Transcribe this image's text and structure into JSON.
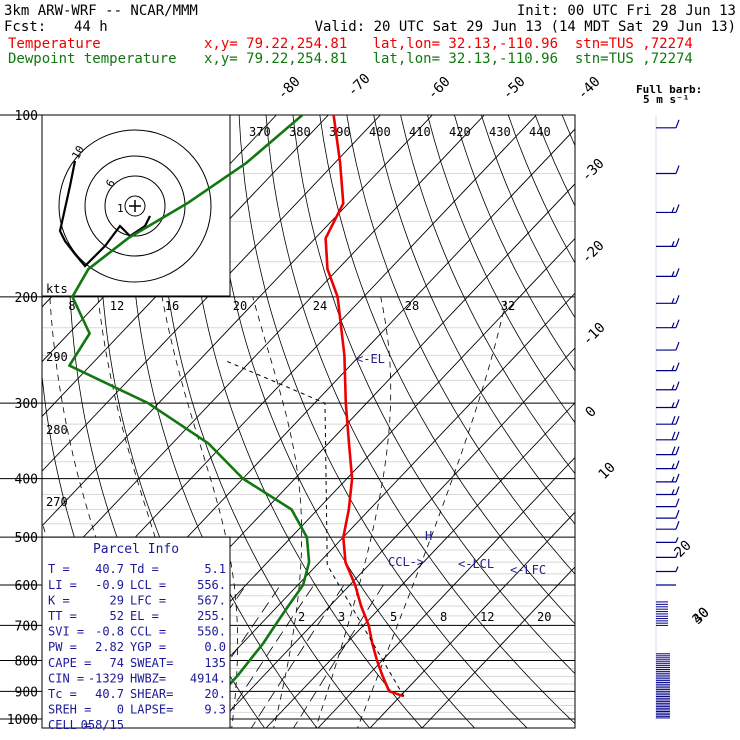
{
  "header": {
    "model": "3km ARW-WRF -- NCAR/MMM",
    "init": "Init: 00 UTC Fri 28 Jun 13",
    "fcst_label": "Fcst:",
    "fcst_value": "44 h",
    "valid": "Valid: 20 UTC Sat 29 Jun 13 (14 MDT Sat 29 Jun 13)"
  },
  "legend": [
    {
      "name": "Temperature",
      "info": "x,y= 79.22,254.81   lat,lon= 32.13,-110.96  stn=TUS ,72274",
      "color": "#ee0000"
    },
    {
      "name": "Dewpoint temperature",
      "info": "x,y= 79.22,254.81   lat,lon= 32.13,-110.96  stn=TUS ,72274",
      "color": "#117711"
    }
  ],
  "barb_title": "Full barb:",
  "barb_unit": "5 m s⁻¹",
  "chart_data": {
    "type": "line",
    "diagram": "skew-T log-P",
    "y_axis": {
      "scale": "log",
      "ticks": [
        100,
        200,
        300,
        400,
        500,
        600,
        700,
        800,
        900,
        1000
      ]
    },
    "isotherm_labels": [
      "-80",
      "-70",
      "-60",
      "-50",
      "-40",
      "-30",
      "-20",
      "-10",
      "0",
      "10",
      "20",
      "30",
      "40"
    ],
    "theta_labels": [
      "370",
      "380",
      "390",
      "400",
      "410",
      "420",
      "430",
      "440"
    ],
    "theta_labels_left": [
      "290",
      "280",
      "270"
    ],
    "mixing_ratio_labels": [
      "2",
      "3",
      "5",
      "8",
      "12",
      "20"
    ],
    "hodograph": {
      "unit_label": "kts",
      "ring_labels": [
        "8",
        "12",
        "16",
        "20",
        "24",
        "28",
        "32"
      ],
      "point_labels": [
        "10",
        "6",
        "1"
      ],
      "trace": [
        [
          1.5,
          -1
        ],
        [
          1,
          -2
        ],
        [
          -0.5,
          -3
        ],
        [
          -1,
          -2.5
        ],
        [
          -1.5,
          -2
        ],
        [
          -3,
          -4
        ],
        [
          -5,
          -6
        ],
        [
          -6,
          -4.8
        ],
        [
          -7,
          -3.5
        ],
        [
          -7.5,
          -2.5
        ],
        [
          -6.5,
          2
        ],
        [
          -6,
          4.5
        ]
      ]
    },
    "series": [
      {
        "name": "Temperature",
        "color": "#ee0000",
        "points": [
          [
            100,
            -79
          ],
          [
            120,
            -69
          ],
          [
            140,
            -61
          ],
          [
            160,
            -58
          ],
          [
            180,
            -52
          ],
          [
            200,
            -45
          ],
          [
            250,
            -33
          ],
          [
            300,
            -24
          ],
          [
            350,
            -16
          ],
          [
            400,
            -9
          ],
          [
            450,
            -4
          ],
          [
            500,
            0
          ],
          [
            550,
            5
          ],
          [
            600,
            11
          ],
          [
            650,
            16
          ],
          [
            700,
            21
          ],
          [
            750,
            25
          ],
          [
            800,
            29
          ],
          [
            850,
            33
          ],
          [
            900,
            37
          ],
          [
            917,
            40.7
          ]
        ]
      },
      {
        "name": "Dewpoint temperature",
        "color": "#117711",
        "points": [
          [
            100,
            -85
          ],
          [
            120,
            -87
          ],
          [
            140,
            -91
          ],
          [
            160,
            -96
          ],
          [
            180,
            -98
          ],
          [
            200,
            -96
          ],
          [
            230,
            -86
          ],
          [
            260,
            -84
          ],
          [
            300,
            -62
          ],
          [
            350,
            -43
          ],
          [
            400,
            -30
          ],
          [
            450,
            -15
          ],
          [
            500,
            -7
          ],
          [
            550,
            -2
          ],
          [
            600,
            1
          ],
          [
            650,
            2
          ],
          [
            700,
            3
          ],
          [
            750,
            4
          ],
          [
            800,
            4.5
          ],
          [
            850,
            5
          ],
          [
            917,
            5.1
          ]
        ]
      }
    ],
    "annotations": [
      "<-EL",
      "CCL->",
      "<-LCL",
      "<-LFC"
    ],
    "wind_barbs": [
      {
        "p": 105,
        "speed": 12,
        "dir": 285
      },
      {
        "p": 125,
        "speed": 14,
        "dir": 280
      },
      {
        "p": 145,
        "speed": 16,
        "dir": 280
      },
      {
        "p": 165,
        "speed": 18,
        "dir": 275
      },
      {
        "p": 185,
        "speed": 17,
        "dir": 275
      },
      {
        "p": 205,
        "speed": 15,
        "dir": 270
      },
      {
        "p": 225,
        "speed": 15,
        "dir": 270
      },
      {
        "p": 245,
        "speed": 14,
        "dir": 265
      },
      {
        "p": 265,
        "speed": 15,
        "dir": 260
      },
      {
        "p": 285,
        "speed": 17,
        "dir": 255
      },
      {
        "p": 305,
        "speed": 19,
        "dir": 250
      },
      {
        "p": 325,
        "speed": 20,
        "dir": 248
      },
      {
        "p": 345,
        "speed": 21,
        "dir": 245
      },
      {
        "p": 365,
        "speed": 20,
        "dir": 245
      },
      {
        "p": 385,
        "speed": 19,
        "dir": 245
      },
      {
        "p": 405,
        "speed": 17,
        "dir": 245
      },
      {
        "p": 425,
        "speed": 15,
        "dir": 245
      },
      {
        "p": 445,
        "speed": 14,
        "dir": 245
      },
      {
        "p": 465,
        "speed": 12,
        "dir": 245
      },
      {
        "p": 485,
        "speed": 10,
        "dir": 245
      },
      {
        "p": 510,
        "speed": 8,
        "dir": 245
      },
      {
        "p": 540,
        "speed": 6,
        "dir": 240
      },
      {
        "p": 570,
        "speed": 5,
        "dir": 235
      },
      {
        "p": 600,
        "speed": 4,
        "dir": 230
      }
    ]
  },
  "parcel": {
    "title": "Parcel Info",
    "rows": [
      [
        "T  =",
        "40.7",
        "Td =",
        "5.1"
      ],
      [
        "LI =",
        "-0.9",
        "LCL =",
        "556."
      ],
      [
        "K  =",
        "29",
        "LFC =",
        "567."
      ],
      [
        "TT =",
        "52",
        "EL  =",
        "255."
      ],
      [
        "SVI =",
        "-0.8",
        "CCL =",
        "550."
      ],
      [
        "PW =",
        "2.82",
        "YGP =",
        "0.0"
      ],
      [
        "CAPE =",
        "74",
        "SWEAT=",
        "135"
      ],
      [
        "CIN =",
        "-1329",
        "HWBZ=",
        "4914."
      ],
      [
        "Tc =",
        "40.7",
        "SHEAR=",
        "20."
      ],
      [
        "SREH =",
        "0",
        "LAPSE=",
        "9.3"
      ],
      [
        "CELL =",
        "058/15",
        "",
        ""
      ]
    ]
  }
}
